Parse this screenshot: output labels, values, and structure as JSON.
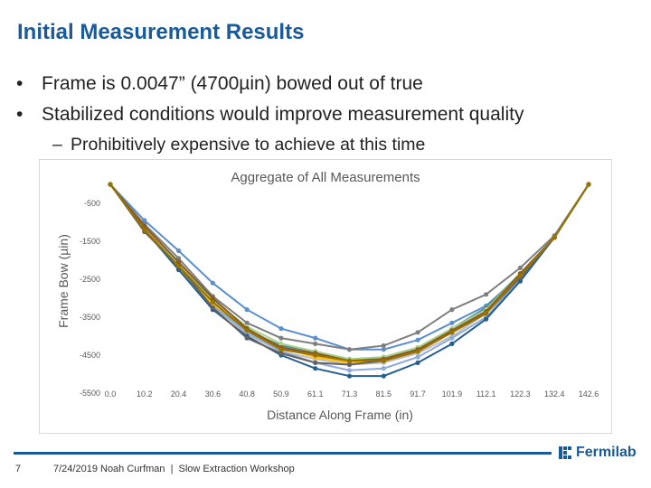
{
  "slide": {
    "title": "Initial Measurement Results",
    "bullets": [
      {
        "marker": "•",
        "text": "Frame is 0.0047” (4700µin)  bowed out of true"
      },
      {
        "marker": "•",
        "text": "Stabilized conditions would improve measurement quality"
      }
    ],
    "subbullets": [
      {
        "marker": "–",
        "text": "Prohibitively expensive to achieve at this time"
      }
    ],
    "footer": {
      "page_number": "7",
      "date": "7/24/2019",
      "author": "Noah Curfman",
      "separator": "|",
      "event": "Slow Extraction Workshop"
    },
    "logo": {
      "text": "Fermilab",
      "color": "#1a5a99"
    }
  },
  "chart_data": {
    "type": "line",
    "title": "Aggregate of All Measurements",
    "xlabel": "Distance Along Frame (in)",
    "ylabel": "Frame Bow (µin)",
    "categories": [
      "0.0",
      "10.2",
      "20.4",
      "30.6",
      "40.8",
      "50.9",
      "61.1",
      "71.3",
      "81.5",
      "91.7",
      "101.9",
      "112.1",
      "122.3",
      "132.4",
      "142.6"
    ],
    "y_ticks": [
      "-500",
      "-1500",
      "-2500",
      "-3500",
      "-4500",
      "-5500"
    ],
    "y_tick_values": [
      -500,
      -1500,
      -2500,
      -3500,
      -4500,
      -5500
    ],
    "ylim": [
      -5500,
      500
    ],
    "grid": false,
    "legend": "none",
    "series": [
      {
        "color": "#5b8fd0",
        "values": [
          0,
          -950,
          -1750,
          -2600,
          -3300,
          -3800,
          -4050,
          -4350,
          -4350,
          -4100,
          -3650,
          -3200,
          -2400,
          -1400,
          0
        ]
      },
      {
        "color": "#7f7f7f",
        "values": [
          0,
          -1050,
          -1950,
          -2950,
          -3650,
          -4050,
          -4200,
          -4350,
          -4250,
          -3900,
          -3300,
          -2900,
          -2200,
          -1350,
          0
        ]
      },
      {
        "color": "#4a8a9a",
        "values": [
          0,
          -1150,
          -2150,
          -3150,
          -3850,
          -4250,
          -4400,
          -4650,
          -4550,
          -4300,
          -3800,
          -3250,
          -2350,
          -1400,
          0
        ]
      },
      {
        "color": "#bfbfbf",
        "values": [
          0,
          -1150,
          -2200,
          -3200,
          -3950,
          -4400,
          -4600,
          -4750,
          -4700,
          -4450,
          -4000,
          -3400,
          -2450,
          -1400,
          0
        ]
      },
      {
        "color": "#8faadc",
        "values": [
          0,
          -1150,
          -2200,
          -3200,
          -3900,
          -4400,
          -4700,
          -4900,
          -4850,
          -4550,
          -4050,
          -3500,
          -2500,
          -1400,
          0
        ]
      },
      {
        "color": "#ffc000",
        "values": [
          0,
          -1200,
          -2250,
          -3150,
          -3800,
          -4300,
          -4550,
          -4700,
          -4650,
          -4400,
          -3900,
          -3400,
          -2400,
          -1400,
          0
        ]
      },
      {
        "color": "#c9a227",
        "values": [
          0,
          -1150,
          -2200,
          -3100,
          -3850,
          -4300,
          -4500,
          -4650,
          -4600,
          -4350,
          -3850,
          -3350,
          -2400,
          -1400,
          0
        ]
      },
      {
        "color": "#a9d18e",
        "values": [
          0,
          -1100,
          -2100,
          -3050,
          -3750,
          -4200,
          -4400,
          -4600,
          -4550,
          -4300,
          -3800,
          -3300,
          -2350,
          -1400,
          0
        ]
      },
      {
        "color": "#8b5a1e",
        "values": [
          0,
          -1100,
          -2050,
          -3000,
          -3800,
          -4300,
          -4450,
          -4650,
          -4600,
          -4350,
          -3850,
          -3350,
          -2350,
          -1400,
          0
        ]
      },
      {
        "color": "#255e91",
        "values": [
          0,
          -1200,
          -2250,
          -3300,
          -4000,
          -4500,
          -4850,
          -5050,
          -5050,
          -4700,
          -4200,
          -3550,
          -2550,
          -1400,
          0
        ]
      },
      {
        "color": "#636363",
        "values": [
          0,
          -1250,
          -2150,
          -3250,
          -4050,
          -4450,
          -4700,
          -4750,
          -4650,
          -4400,
          -3900,
          -3400,
          -2450,
          -1400,
          0
        ]
      },
      {
        "color": "#997300",
        "values": [
          0,
          -1200,
          -2150,
          -3100,
          -3850,
          -4350,
          -4500,
          -4650,
          -4650,
          -4400,
          -3900,
          -3400,
          -2400,
          -1400,
          0
        ]
      }
    ]
  }
}
